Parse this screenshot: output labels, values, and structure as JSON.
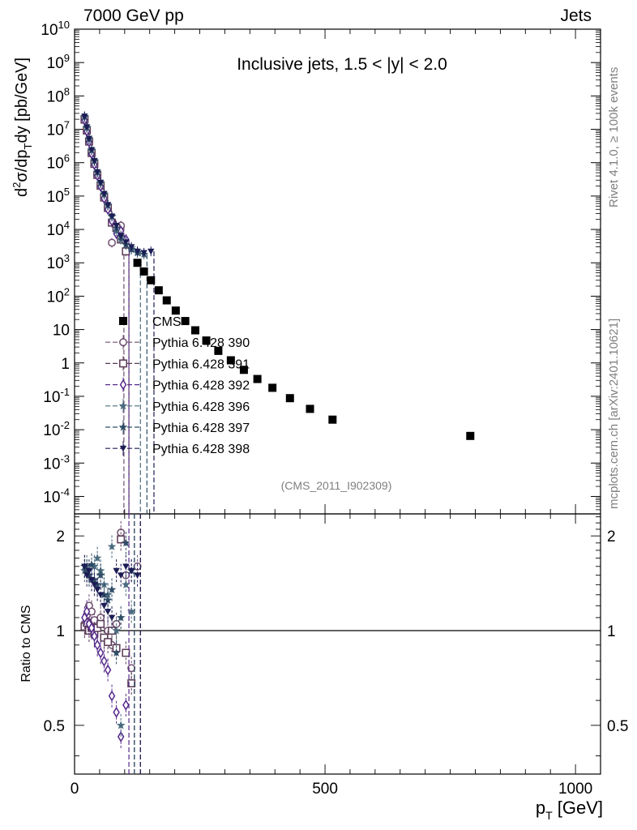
{
  "header": {
    "left": "7000 GeV pp",
    "right": "Jets"
  },
  "side_labels": {
    "rivet": "Rivet 4.1.0, ≥ 100k events",
    "mcplots": "mcplots.cern.ch [arXiv:2401.10621]"
  },
  "colors": {
    "CMS": "#000000",
    "p390": "#6e4f6f",
    "p391": "#5a3a55",
    "p392": "#552a8a",
    "p396": "#4b6b7f",
    "p397": "#2f4d66",
    "p398": "#1c1c55",
    "ref": "#7f7f7f"
  },
  "chart_data": [
    {
      "type": "scatter",
      "panel": "main",
      "title": "Inclusive jets, 1.5 < |y| < 2.0",
      "annotation": "(CMS_2011_I902309)",
      "ylabel": "d²σ/dp_T dy [pb/GeV]",
      "ylabel_parts": {
        "d": "d",
        "two": "2",
        "sigma": "σ/dp",
        "T": "T",
        "rest": "dy [pb/GeV]"
      },
      "yscale": "log",
      "ylim": [
        3e-05,
        10000000000
      ],
      "xlim": [
        0,
        1050
      ],
      "yticks": [
        {
          "v": 0.0001,
          "b": "10",
          "e": "-4"
        },
        {
          "v": 0.001,
          "b": "10",
          "e": "-3"
        },
        {
          "v": 0.01,
          "b": "10",
          "e": "-2"
        },
        {
          "v": 0.1,
          "b": "10",
          "e": "-1"
        },
        {
          "v": 1,
          "b": "1",
          "e": ""
        },
        {
          "v": 10,
          "b": "10",
          "e": ""
        },
        {
          "v": 100,
          "b": "10",
          "e": "2"
        },
        {
          "v": 1000,
          "b": "10",
          "e": "3"
        },
        {
          "v": 10000,
          "b": "10",
          "e": "4"
        },
        {
          "v": 100000,
          "b": "10",
          "e": "5"
        },
        {
          "v": 1000000,
          "b": "10",
          "e": "6"
        },
        {
          "v": 10000000,
          "b": "10",
          "e": "7"
        },
        {
          "v": 100000000,
          "b": "10",
          "e": "8"
        },
        {
          "v": 1000000000,
          "b": "10",
          "e": "9"
        },
        {
          "v": 10000000000,
          "b": "10",
          "e": "10"
        }
      ],
      "legend": [
        {
          "label": "CMS",
          "key": "CMS",
          "marker": "square"
        },
        {
          "label": "Pythia 6.428 390",
          "key": "p390",
          "marker": "circle"
        },
        {
          "label": "Pythia 6.428 391",
          "key": "p391",
          "marker": "open-square"
        },
        {
          "label": "Pythia 6.428 392",
          "key": "p392",
          "marker": "diamond"
        },
        {
          "label": "Pythia 6.428 396",
          "key": "p396",
          "marker": "star"
        },
        {
          "label": "Pythia 6.428 397",
          "key": "p397",
          "marker": "star"
        },
        {
          "label": "Pythia 6.428 398",
          "key": "p398",
          "marker": "triangle-down"
        }
      ],
      "series": [
        {
          "name": "CMS",
          "key": "CMS",
          "marker": "square",
          "x": [
            20,
            24.5,
            29,
            34,
            39.5,
            45.5,
            52,
            59,
            66.5,
            74.5,
            83.5,
            92.5,
            102.5,
            113.5,
            125.5,
            138.5,
            152.5,
            168,
            184,
            202,
            221,
            241,
            263,
            287,
            312,
            338,
            365,
            395,
            430,
            470,
            515,
            790
          ],
          "y": [
            19000000,
            9000000,
            4200000,
            1900000,
            900000,
            420000,
            200000,
            95000,
            45000,
            23000,
            12000,
            6300,
            3300,
            1800,
            1000,
            550,
            300,
            150,
            75,
            37,
            18,
            9.5,
            4.7,
            2.3,
            1.2,
            0.62,
            0.33,
            0.18,
            0.088,
            0.042,
            0.02,
            0.0065
          ]
        },
        {
          "name": "Pythia 6.428 390",
          "key": "p390",
          "marker": "circle",
          "x": [
            20,
            24.5,
            29,
            34,
            39.5,
            45.5,
            52,
            59,
            66.5,
            74.5,
            83.5,
            92.5
          ],
          "y": [
            20000000,
            9400000,
            4500000,
            2000000,
            950000,
            440000,
            210000,
            92000,
            45000,
            4000,
            12000,
            13000
          ]
        },
        {
          "name": "Pythia 6.428 391",
          "key": "p391",
          "marker": "open-square",
          "x": [
            20,
            24.5,
            29,
            34,
            39.5,
            45.5,
            52,
            59,
            66.5,
            74.5,
            83.5,
            92.5,
            102.5
          ],
          "y": [
            19500000,
            9200000,
            4300000,
            1950000,
            920000,
            430000,
            205000,
            90000,
            44000,
            16000,
            11000,
            5000,
            2200
          ]
        },
        {
          "name": "Pythia 6.428 392",
          "key": "p392",
          "marker": "diamond",
          "x": [
            20,
            24.5,
            29,
            34,
            39.5,
            45.5,
            52,
            59,
            66.5,
            74.5,
            83.5,
            92.5,
            102.5
          ],
          "y": [
            19000000,
            8800000,
            4200000,
            1850000,
            880000,
            410000,
            195000,
            85000,
            40000,
            18000,
            7500,
            9000,
            5000
          ]
        },
        {
          "name": "Pythia 6.428 396",
          "key": "p396",
          "marker": "star",
          "x": [
            20,
            24.5,
            29,
            34,
            39.5,
            45.5,
            52,
            59,
            66.5,
            74.5,
            83.5,
            92.5,
            102.5,
            113.5,
            125.5
          ],
          "y": [
            23000000,
            11000000,
            5000000,
            2300000,
            1100000,
            500000,
            240000,
            110000,
            52000,
            24000,
            9000,
            5000,
            3500,
            2800,
            2200
          ]
        },
        {
          "name": "Pythia 6.428 397",
          "key": "p397",
          "marker": "star",
          "x": [
            20,
            24.5,
            29,
            34,
            39.5,
            45.5,
            52,
            59,
            66.5,
            74.5,
            83.5,
            92.5,
            102.5,
            113.5,
            125.5,
            138.5
          ],
          "y": [
            24000000,
            11500000,
            5200000,
            2400000,
            1150000,
            520000,
            250000,
            115000,
            54000,
            25000,
            11000,
            6000,
            3500,
            2500,
            2000,
            1800
          ]
        },
        {
          "name": "Pythia 6.428 398",
          "key": "p398",
          "marker": "triangle-down",
          "x": [
            20,
            24.5,
            29,
            34,
            39.5,
            45.5,
            52,
            59,
            66.5,
            74.5,
            83.5,
            92.5,
            102.5,
            113.5,
            125.5,
            138.5,
            152.5
          ],
          "y": [
            24500000,
            11800000,
            5300000,
            2450000,
            1150000,
            530000,
            255000,
            118000,
            55000,
            25000,
            13000,
            6500,
            4200,
            3000,
            2200,
            2000,
            2200
          ]
        }
      ]
    },
    {
      "type": "scatter",
      "panel": "ratio",
      "ylabel": "Ratio to CMS",
      "yscale": "log",
      "ylim": [
        0.35,
        2.35
      ],
      "reference_line": 1,
      "yticks": [
        {
          "v": 0.5,
          "label": "0.5"
        },
        {
          "v": 1,
          "label": "1"
        },
        {
          "v": 2,
          "label": "2"
        }
      ],
      "xlabel": "p_T [GeV]",
      "xlabel_parts": {
        "p": "p",
        "T": "T",
        "unit": "[GeV]"
      },
      "xticks": [
        {
          "v": 0,
          "label": "0"
        },
        {
          "v": 500,
          "label": "500"
        },
        {
          "v": 1000,
          "label": "1000"
        }
      ],
      "series": [
        {
          "name": "Pythia 6.428 390",
          "key": "p390",
          "marker": "circle",
          "x": [
            20,
            24.5,
            29,
            34,
            39.5,
            45.5,
            52,
            59,
            66.5,
            74.5,
            83.5,
            92.5,
            102.5,
            113.5,
            125.5
          ],
          "y": [
            1.05,
            1.12,
            1.2,
            1.15,
            1.08,
            1.02,
            1.1,
            0.95,
            1.0,
            0.9,
            1.05,
            2.05,
            1.5,
            0.76,
            1.6
          ]
        },
        {
          "name": "Pythia 6.428 391",
          "key": "p391",
          "marker": "open-square",
          "x": [
            20,
            24.5,
            29,
            34,
            39.5,
            45.5,
            52,
            59,
            66.5,
            74.5,
            83.5,
            92.5,
            102.5,
            113.5
          ],
          "y": [
            1.03,
            1.06,
            1.0,
            1.02,
            0.98,
            1.02,
            1.05,
            0.95,
            0.92,
            1.0,
            0.88,
            1.95,
            0.85,
            0.68
          ]
        },
        {
          "name": "Pythia 6.428 392",
          "key": "p392",
          "marker": "diamond",
          "x": [
            20,
            24.5,
            29,
            34,
            39.5,
            45.5,
            52,
            59,
            66.5,
            74.5,
            83.5,
            92.5,
            102.5
          ],
          "y": [
            1.1,
            1.15,
            1.05,
            1.02,
            0.96,
            0.9,
            0.85,
            0.8,
            0.75,
            0.62,
            0.55,
            0.46,
            0.58
          ]
        },
        {
          "name": "Pythia 6.428 396",
          "key": "p396",
          "marker": "star",
          "x": [
            20,
            24.5,
            29,
            34,
            39.5,
            45.5,
            52,
            59,
            66.5,
            74.5,
            83.5,
            92.5,
            102.5,
            113.5
          ],
          "y": [
            1.55,
            1.6,
            1.5,
            1.45,
            1.6,
            1.7,
            1.55,
            1.4,
            1.3,
            1.85,
            1.0,
            0.5,
            1.4,
            1.15
          ]
        },
        {
          "name": "Pythia 6.428 397",
          "key": "p397",
          "marker": "star",
          "x": [
            20,
            24.5,
            29,
            34,
            39.5,
            45.5,
            52,
            59,
            66.5,
            74.5,
            83.5,
            92.5,
            102.5,
            113.5
          ],
          "y": [
            1.6,
            1.55,
            1.5,
            1.62,
            1.45,
            1.4,
            1.5,
            1.3,
            1.25,
            1.35,
            0.85,
            1.1,
            1.9,
            1.55
          ]
        },
        {
          "name": "Pythia 6.428 398",
          "key": "p398",
          "marker": "triangle-down",
          "x": [
            20,
            24.5,
            29,
            34,
            39.5,
            45.5,
            52,
            59,
            66.5,
            74.5,
            83.5,
            92.5,
            102.5,
            113.5,
            125.5
          ],
          "y": [
            1.6,
            1.5,
            1.55,
            1.45,
            1.4,
            1.35,
            1.3,
            1.2,
            1.15,
            1.1,
            1.55,
            1.5,
            1.6,
            1.55,
            1.5
          ]
        }
      ]
    }
  ]
}
